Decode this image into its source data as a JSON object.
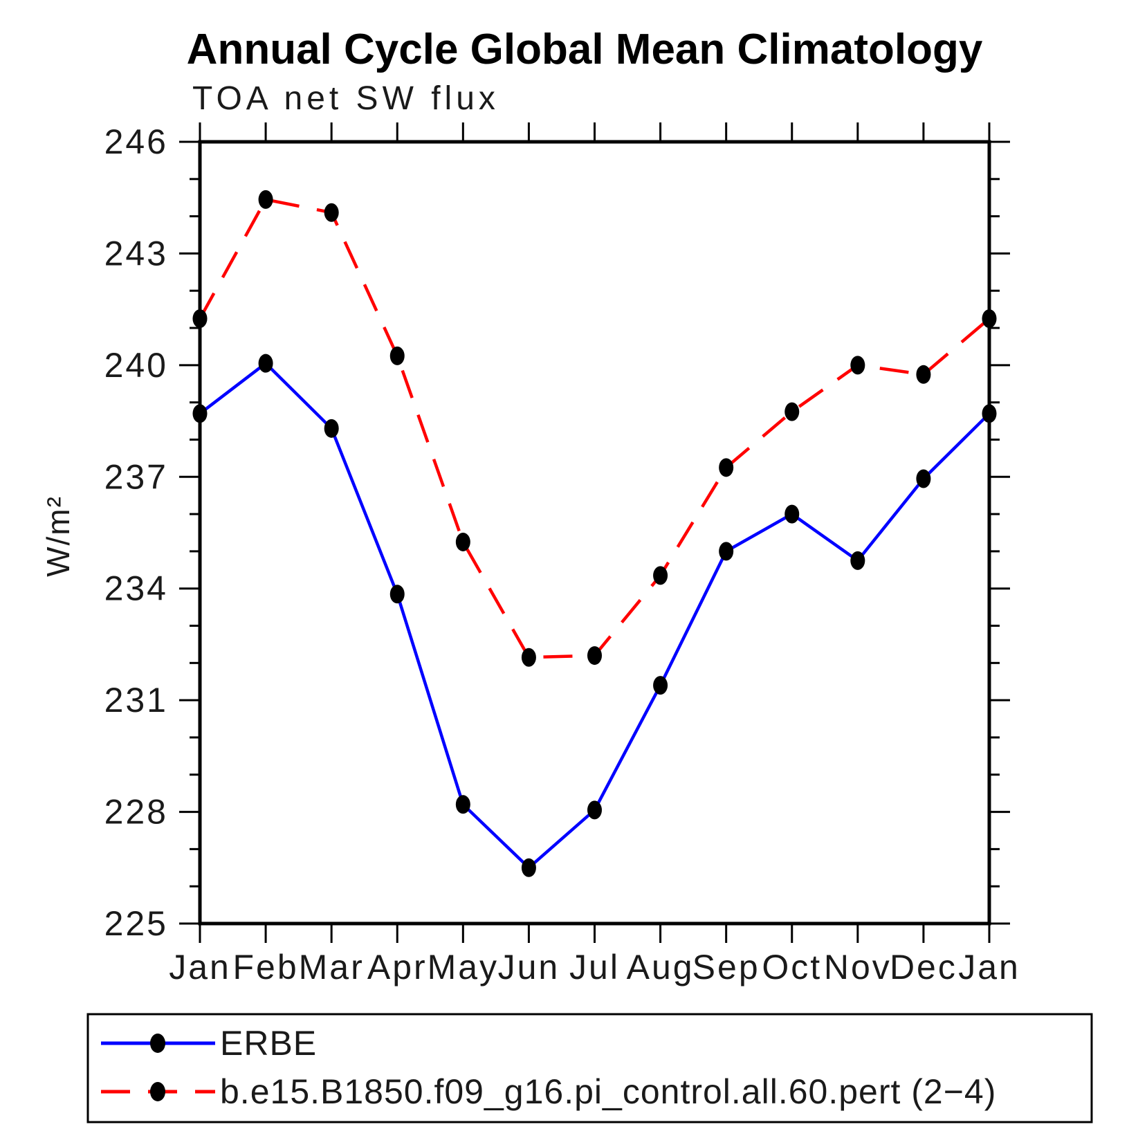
{
  "header": {
    "title": "Annual Cycle Global Mean Climatology",
    "subtitle": "TOA net SW flux"
  },
  "y_axis": {
    "label": "W/m²"
  },
  "legend": {
    "entries": [
      {
        "label": "ERBE",
        "color": "#0000ff",
        "style": "solid"
      },
      {
        "label": "b.e15.B1850.f09_g16.pi_control.all.60.pert (2−4)",
        "color": "#ff0000",
        "style": "dashed"
      }
    ]
  },
  "chart_data": {
    "type": "line",
    "title": "Annual Cycle Global Mean Climatology",
    "subtitle": "TOA net SW flux",
    "xlabel": "",
    "ylabel": "W/m²",
    "categories": [
      "Jan",
      "Feb",
      "Mar",
      "Apr",
      "May",
      "Jun",
      "Jul",
      "Aug",
      "Sep",
      "Oct",
      "Nov",
      "Dec",
      "Jan"
    ],
    "yticks_major": [
      225,
      228,
      231,
      234,
      237,
      240,
      243,
      246
    ],
    "ytick_minor_step": 1,
    "ylim": [
      225,
      246
    ],
    "grid": false,
    "legend_position": "below-plot-boxed",
    "marker": {
      "shape": "filled-ellipse",
      "color": "#000000"
    },
    "series": [
      {
        "name": "ERBE",
        "color": "#0000ff",
        "line_style": "solid",
        "values": [
          238.7,
          240.05,
          238.3,
          233.85,
          228.2,
          226.5,
          228.05,
          231.4,
          235.0,
          236.0,
          234.75,
          236.95,
          238.7
        ]
      },
      {
        "name": "b.e15.B1850.f09_g16.pi_control.all.60.pert (2−4)",
        "color": "#ff0000",
        "line_style": "dashed",
        "values": [
          241.25,
          244.45,
          244.1,
          240.25,
          235.25,
          232.15,
          232.2,
          234.35,
          237.25,
          238.75,
          240.0,
          239.75,
          241.25
        ]
      }
    ]
  }
}
